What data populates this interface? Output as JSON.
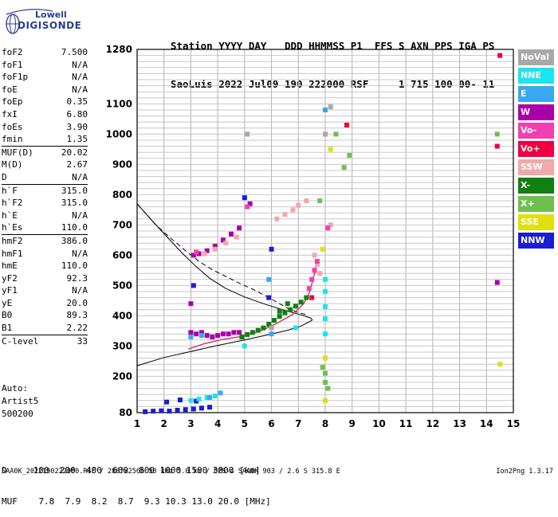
{
  "logo": {
    "line1": "Lowell",
    "line2": "DIGISONDE"
  },
  "header": {
    "line1": "Station YYYY DAY   DDD HHMMSS P1  FFS S AXN PPS IGA PS",
    "line2": "SaoLuis 2022 Jul09 190 222000 RSF     1 715 100 00- 11"
  },
  "params": [
    {
      "k": "foF2",
      "v": "7.500"
    },
    {
      "k": "foF1",
      "v": "N/A"
    },
    {
      "k": "foF1p",
      "v": "N/A"
    },
    {
      "k": "foE",
      "v": "N/A"
    },
    {
      "k": "foEp",
      "v": "0.35"
    },
    {
      "k": "fxI",
      "v": "6.80"
    },
    {
      "k": "foEs",
      "v": "3.90"
    },
    {
      "k": "fmin",
      "v": "1.35"
    },
    {
      "k": "MUF(D)",
      "v": "20.02",
      "sep": true
    },
    {
      "k": "M(D)",
      "v": "2.67"
    },
    {
      "k": "D",
      "v": "N/A"
    },
    {
      "k": "h`F",
      "v": "315.0",
      "sep": true
    },
    {
      "k": "h`F2",
      "v": "315.0"
    },
    {
      "k": "h`E",
      "v": "N/A"
    },
    {
      "k": "h`Es",
      "v": "110.0"
    },
    {
      "k": "hmF2",
      "v": "386.0",
      "sep": true
    },
    {
      "k": "hmF1",
      "v": "N/A"
    },
    {
      "k": "hmE",
      "v": "110.0"
    },
    {
      "k": "yF2",
      "v": "92.3"
    },
    {
      "k": "yF1",
      "v": "N/A"
    },
    {
      "k": "yE",
      "v": "20.0"
    },
    {
      "k": "B0",
      "v": "89.3"
    },
    {
      "k": "B1",
      "v": "2.22"
    },
    {
      "k": "C-level",
      "v": "33",
      "sep": true
    }
  ],
  "auto": {
    "line1": "Auto:",
    "line2": "Artist5",
    "line3": "500200"
  },
  "legend": [
    {
      "label": "NoVal",
      "color": "#a8a8a8"
    },
    {
      "label": "NNE",
      "color": "#1ce4f0"
    },
    {
      "label": "E",
      "color": "#3aa8f0"
    },
    {
      "label": "W",
      "color": "#a800a8"
    },
    {
      "label": "Vo-",
      "color": "#f040b0"
    },
    {
      "label": "Vo+",
      "color": "#f00040"
    },
    {
      "label": "SSW",
      "color": "#f0a8a8"
    },
    {
      "label": "X-",
      "color": "#108010"
    },
    {
      "label": "X+",
      "color": "#70c050"
    },
    {
      "label": "SSE",
      "color": "#e0e010"
    },
    {
      "label": "NNW",
      "color": "#1c1cd0"
    }
  ],
  "dtable": {
    "line1": "D     100  200  400  600  800 1000 1500 3000 [km]",
    "line2": "MUF    7.8  7.9  8.2  8.7  9.3 10.3 13.0 20.0 [MHz]"
  },
  "footer": "SAA0K_2022190222000.RSF / 280fx256h 50 kHz 5.0 km / DPS-4 SAA0K 903 / 2.6 S 315.8 E",
  "version": "Ion2Png 1.3.17",
  "chart_data": {
    "type": "scatter",
    "title": "",
    "xlabel": "",
    "ylabel": "",
    "xlim": [
      1,
      15
    ],
    "ylim": [
      80,
      1280
    ],
    "xticks": [
      1,
      2,
      3,
      4,
      5,
      6,
      7,
      8,
      9,
      10,
      11,
      12,
      13,
      14,
      15
    ],
    "yticks": [
      80,
      200,
      300,
      400,
      500,
      600,
      700,
      800,
      900,
      1000,
      1100,
      1280
    ],
    "grid": true,
    "series": [
      {
        "name": "W",
        "color": "#a800a8",
        "points": [
          [
            3.0,
            345
          ],
          [
            3.2,
            340
          ],
          [
            3.4,
            345
          ],
          [
            3.6,
            335
          ],
          [
            3.8,
            330
          ],
          [
            4.0,
            335
          ],
          [
            4.2,
            340
          ],
          [
            4.4,
            340
          ],
          [
            4.6,
            345
          ],
          [
            4.8,
            345
          ],
          [
            3.1,
            600
          ],
          [
            3.3,
            605
          ],
          [
            3.6,
            615
          ],
          [
            3.9,
            630
          ],
          [
            4.2,
            650
          ],
          [
            4.5,
            670
          ],
          [
            4.8,
            690
          ],
          [
            3.0,
            440
          ],
          [
            5.2,
            770
          ],
          [
            14.4,
            510
          ]
        ]
      },
      {
        "name": "X-",
        "color": "#108010",
        "points": [
          [
            4.9,
            330
          ],
          [
            5.1,
            338
          ],
          [
            5.3,
            345
          ],
          [
            5.5,
            352
          ],
          [
            5.7,
            360
          ],
          [
            5.9,
            372
          ],
          [
            6.1,
            385
          ],
          [
            6.3,
            398
          ],
          [
            6.5,
            410
          ],
          [
            6.7,
            420
          ],
          [
            6.9,
            432
          ],
          [
            7.1,
            445
          ],
          [
            7.3,
            460
          ],
          [
            6.6,
            440
          ],
          [
            6.3,
            415
          ]
        ]
      },
      {
        "name": "NNW",
        "color": "#1c1cd0",
        "points": [
          [
            1.3,
            83
          ],
          [
            1.6,
            85
          ],
          [
            1.9,
            86
          ],
          [
            2.2,
            85
          ],
          [
            2.5,
            88
          ],
          [
            2.8,
            90
          ],
          [
            3.1,
            92
          ],
          [
            3.4,
            95
          ],
          [
            3.7,
            98
          ],
          [
            2.1,
            115
          ],
          [
            2.6,
            122
          ],
          [
            3.2,
            118
          ],
          [
            5.0,
            790
          ],
          [
            6.0,
            620
          ],
          [
            5.9,
            460
          ],
          [
            3.1,
            500
          ]
        ]
      },
      {
        "name": "NNE",
        "color": "#1ce4f0",
        "points": [
          [
            3.0,
            120
          ],
          [
            3.3,
            125
          ],
          [
            3.6,
            130
          ],
          [
            3.9,
            135
          ],
          [
            8.0,
            520
          ],
          [
            8.0,
            480
          ],
          [
            8.0,
            430
          ],
          [
            8.0,
            390
          ],
          [
            8.0,
            340
          ],
          [
            6.9,
            360
          ],
          [
            5.0,
            300
          ]
        ]
      },
      {
        "name": "SSW",
        "color": "#f0a8a8",
        "points": [
          [
            6.2,
            720
          ],
          [
            6.5,
            735
          ],
          [
            6.8,
            750
          ],
          [
            7.0,
            765
          ],
          [
            7.3,
            780
          ],
          [
            7.6,
            600
          ],
          [
            7.7,
            570
          ],
          [
            7.8,
            540
          ],
          [
            3.5,
            605
          ],
          [
            3.9,
            620
          ],
          [
            4.3,
            640
          ],
          [
            4.7,
            660
          ],
          [
            8.2,
            700
          ]
        ]
      },
      {
        "name": "Vo-",
        "color": "#f040b0",
        "points": [
          [
            7.4,
            490
          ],
          [
            7.5,
            520
          ],
          [
            7.6,
            550
          ],
          [
            7.7,
            580
          ],
          [
            3.2,
            610
          ],
          [
            5.1,
            760
          ],
          [
            8.1,
            690
          ]
        ]
      },
      {
        "name": "Vo+",
        "color": "#f00040",
        "points": [
          [
            14.5,
            1260
          ],
          [
            14.4,
            960
          ],
          [
            7.5,
            460
          ],
          [
            8.8,
            1030
          ]
        ]
      },
      {
        "name": "E",
        "color": "#3aa8f0",
        "points": [
          [
            3.0,
            330
          ],
          [
            3.4,
            335
          ],
          [
            3.7,
            130
          ],
          [
            4.1,
            145
          ],
          [
            6.0,
            340
          ],
          [
            8.0,
            1080
          ],
          [
            5.9,
            520
          ]
        ]
      },
      {
        "name": "X+",
        "color": "#70c050",
        "points": [
          [
            7.9,
            230
          ],
          [
            8.0,
            210
          ],
          [
            8.0,
            180
          ],
          [
            8.1,
            160
          ],
          [
            8.4,
            1000
          ],
          [
            8.9,
            930
          ],
          [
            8.7,
            890
          ],
          [
            7.8,
            780
          ],
          [
            14.4,
            1000
          ]
        ]
      },
      {
        "name": "SSE",
        "color": "#e0e010",
        "points": [
          [
            8.0,
            260
          ],
          [
            8.0,
            120
          ],
          [
            8.2,
            950
          ],
          [
            14.5,
            240
          ],
          [
            7.9,
            620
          ]
        ]
      },
      {
        "name": "NoVal",
        "color": "#a8a8a8",
        "points": [
          [
            8.0,
            1000
          ],
          [
            8.2,
            1090
          ],
          [
            6.0,
            360
          ],
          [
            5.1,
            1000
          ]
        ]
      }
    ],
    "traces": [
      {
        "name": "profile",
        "style": "solid",
        "points": [
          [
            1.0,
            235
          ],
          [
            2.0,
            262
          ],
          [
            3.0,
            282
          ],
          [
            4.0,
            302
          ],
          [
            5.0,
            320
          ],
          [
            6.0,
            340
          ],
          [
            6.6,
            352
          ],
          [
            7.1,
            366
          ],
          [
            7.4,
            380
          ],
          [
            7.52,
            386
          ],
          [
            7.45,
            393
          ],
          [
            7.1,
            403
          ],
          [
            6.5,
            418
          ],
          [
            5.8,
            437
          ],
          [
            5.0,
            462
          ],
          [
            4.3,
            490
          ],
          [
            3.7,
            524
          ],
          [
            3.2,
            562
          ],
          [
            2.7,
            605
          ],
          [
            2.2,
            652
          ],
          [
            1.6,
            710
          ],
          [
            1.0,
            770
          ]
        ]
      },
      {
        "name": "virtual",
        "style": "dashed",
        "points": [
          [
            1.0,
            770
          ],
          [
            1.3,
            740
          ],
          [
            1.7,
            700
          ],
          [
            2.2,
            660
          ],
          [
            2.8,
            615
          ],
          [
            3.3,
            580
          ],
          [
            3.8,
            552
          ],
          [
            4.3,
            530
          ],
          [
            4.8,
            508
          ],
          [
            5.3,
            488
          ],
          [
            5.8,
            465
          ],
          [
            6.2,
            445
          ],
          [
            6.6,
            425
          ],
          [
            7.0,
            410
          ],
          [
            7.3,
            404
          ]
        ]
      },
      {
        "name": "trace",
        "style": "solid",
        "points": [
          [
            2.9,
            290
          ],
          [
            3.5,
            308
          ],
          [
            4.2,
            322
          ],
          [
            4.9,
            332
          ],
          [
            5.6,
            350
          ],
          [
            6.2,
            375
          ],
          [
            6.8,
            405
          ],
          [
            7.2,
            440
          ],
          [
            7.4,
            475
          ],
          [
            7.55,
            520
          ],
          [
            7.65,
            560
          ]
        ]
      }
    ]
  }
}
